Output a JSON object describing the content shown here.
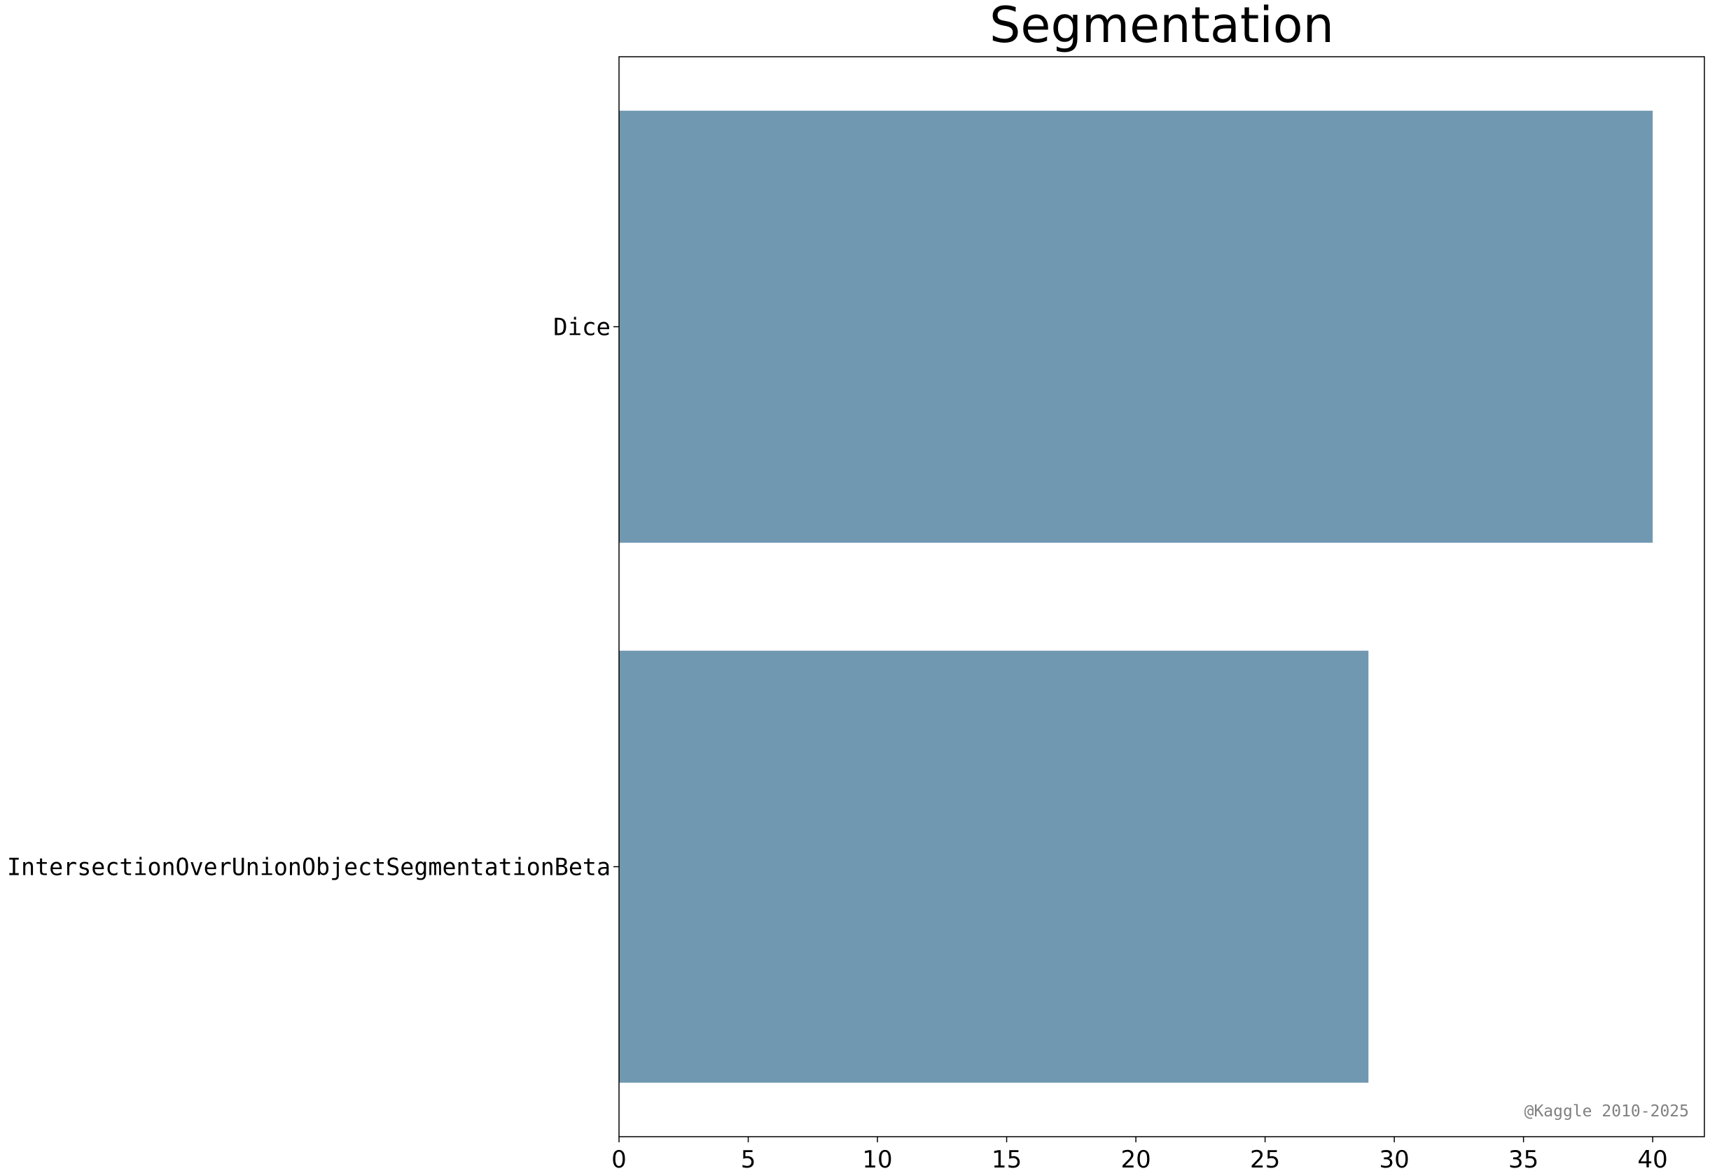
{
  "chart_data": {
    "type": "bar",
    "orientation": "horizontal",
    "title": "Segmentation",
    "categories": [
      "Dice",
      "IntersectionOverUnionObjectSegmentationBeta"
    ],
    "values": [
      40,
      29
    ],
    "xlabel": "",
    "ylabel": "",
    "xlim": [
      0,
      42
    ],
    "xticks": [
      0,
      5,
      10,
      15,
      20,
      25,
      30,
      35,
      40
    ],
    "grid": false,
    "legend": "none",
    "bar_color": "#7198b1",
    "watermark": "@Kaggle 2010-2025"
  }
}
